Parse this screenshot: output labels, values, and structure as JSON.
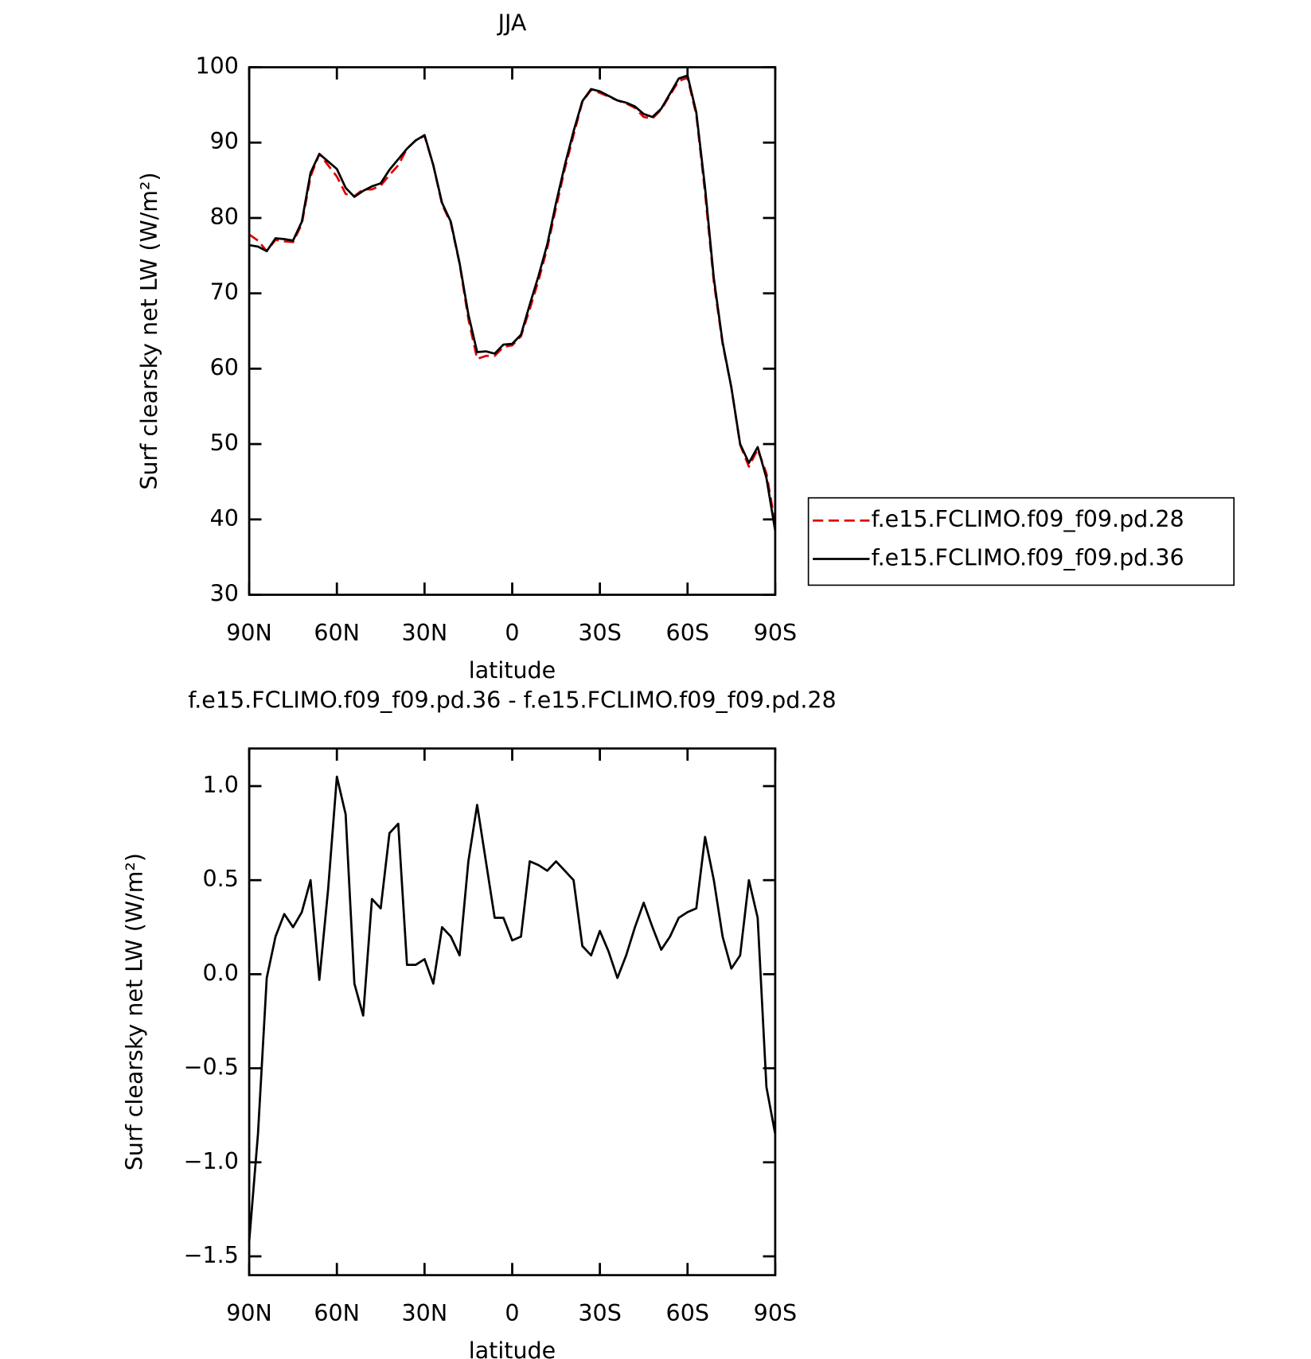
{
  "chart_data": [
    {
      "type": "line",
      "title": "JJA",
      "xlabel": "latitude",
      "ylabel": "Surf clearsky net LW (W/m²)",
      "x": [
        90,
        87,
        84,
        81,
        78,
        75,
        72,
        69,
        66,
        63,
        60,
        57,
        54,
        51,
        48,
        45,
        42,
        39,
        36,
        33,
        30,
        27,
        24,
        21,
        18,
        15,
        12,
        9,
        6,
        3,
        0,
        -3,
        -6,
        -9,
        -12,
        -15,
        -18,
        -21,
        -24,
        -27,
        -30,
        -33,
        -36,
        -39,
        -42,
        -45,
        -48,
        -51,
        -54,
        -57,
        -60,
        -63,
        -66,
        -69,
        -72,
        -75,
        -78,
        -81,
        -84,
        -87,
        -90
      ],
      "series": [
        {
          "name": "f.e15.FCLIMO.f09_f09.pd.28",
          "color": "#e00000",
          "linestyle": "dashed",
          "values": [
            77.8,
            77.0,
            75.6,
            77.1,
            76.9,
            76.8,
            79.2,
            85.5,
            88.5,
            87.0,
            85.5,
            83.2,
            82.9,
            83.8,
            83.8,
            84.3,
            85.7,
            87.0,
            89.2,
            90.3,
            90.9,
            87.0,
            81.8,
            79.3,
            73.9,
            66.6,
            61.3,
            61.7,
            61.7,
            62.9,
            63.1,
            64.3,
            67.9,
            71.7,
            76.0,
            81.4,
            86.5,
            91.0,
            95.4,
            97.0,
            96.6,
            96.1,
            95.6,
            95.2,
            94.6,
            93.4,
            93.2,
            94.4,
            96.3,
            98.2,
            98.6,
            93.7,
            83.3,
            71.5,
            63.3,
            57.5,
            49.9,
            47.0,
            49.3,
            46.1,
            39.4
          ]
        },
        {
          "name": "f.e15.FCLIMO.f09_f09.pd.36",
          "color": "#000000",
          "linestyle": "solid",
          "values": [
            76.4,
            76.2,
            75.6,
            77.3,
            77.2,
            77.0,
            79.5,
            86.0,
            88.5,
            87.5,
            86.5,
            84.0,
            82.8,
            83.6,
            84.2,
            84.6,
            86.4,
            87.8,
            89.2,
            90.3,
            91.0,
            87.0,
            82.0,
            79.5,
            74.0,
            67.2,
            62.2,
            62.3,
            62.0,
            63.2,
            63.3,
            64.5,
            68.5,
            72.3,
            76.5,
            82.0,
            87.0,
            91.5,
            95.5,
            97.1,
            96.8,
            96.2,
            95.6,
            95.3,
            94.8,
            93.8,
            93.4,
            94.5,
            96.5,
            98.5,
            98.9,
            94.0,
            84.0,
            72.0,
            63.5,
            57.5,
            50.0,
            47.5,
            49.6,
            45.5,
            38.5
          ]
        }
      ],
      "xlim": [
        90,
        -90
      ],
      "xticks": [
        {
          "value": 90,
          "label": "90N"
        },
        {
          "value": 60,
          "label": "60N"
        },
        {
          "value": 30,
          "label": "30N"
        },
        0,
        {
          "value": -30,
          "label": "30S"
        },
        {
          "value": -60,
          "label": "60S"
        },
        {
          "value": -90,
          "label": "90S"
        }
      ],
      "ylim": [
        30,
        100
      ],
      "yticks": [
        30,
        40,
        50,
        60,
        70,
        80,
        90,
        100
      ],
      "legend": "outside-right"
    },
    {
      "type": "line",
      "title": "f.e15.FCLIMO.f09_f09.pd.36 - f.e15.FCLIMO.f09_f09.pd.28",
      "xlabel": "latitude",
      "ylabel": "Surf clearsky net LW (W/m²)",
      "x": [
        90,
        87,
        84,
        81,
        78,
        75,
        72,
        69,
        66,
        63,
        60,
        57,
        54,
        51,
        48,
        45,
        42,
        39,
        36,
        33,
        30,
        27,
        24,
        21,
        18,
        15,
        12,
        9,
        6,
        3,
        0,
        -3,
        -6,
        -9,
        -12,
        -15,
        -18,
        -21,
        -24,
        -27,
        -30,
        -33,
        -36,
        -39,
        -42,
        -45,
        -48,
        -51,
        -54,
        -57,
        -60,
        -63,
        -66,
        -69,
        -72,
        -75,
        -78,
        -81,
        -84,
        -87,
        -90
      ],
      "values": [
        -1.42,
        -0.85,
        -0.02,
        0.2,
        0.32,
        0.25,
        0.33,
        0.5,
        -0.03,
        0.45,
        1.05,
        0.85,
        -0.05,
        -0.22,
        0.4,
        0.35,
        0.75,
        0.8,
        0.05,
        0.05,
        0.08,
        -0.05,
        0.25,
        0.2,
        0.1,
        0.6,
        0.9,
        0.6,
        0.3,
        0.3,
        0.18,
        0.2,
        0.6,
        0.58,
        0.55,
        0.6,
        0.55,
        0.5,
        0.15,
        0.1,
        0.23,
        0.12,
        -0.02,
        0.1,
        0.25,
        0.38,
        0.25,
        0.13,
        0.2,
        0.3,
        0.33,
        0.35,
        0.73,
        0.5,
        0.2,
        0.03,
        0.1,
        0.5,
        0.3,
        -0.6,
        -0.85
      ],
      "color": "#000000",
      "xlim": [
        90,
        -90
      ],
      "xticks": [
        {
          "value": 90,
          "label": "90N"
        },
        {
          "value": 60,
          "label": "60N"
        },
        {
          "value": 30,
          "label": "30N"
        },
        0,
        {
          "value": -30,
          "label": "30S"
        },
        {
          "value": -60,
          "label": "60S"
        },
        {
          "value": -90,
          "label": "90S"
        }
      ],
      "ylim": [
        -1.6,
        1.2
      ],
      "yticks": [
        {
          "value": -1.5,
          "label": "−1.5"
        },
        {
          "value": -1,
          "label": "−1.0"
        },
        {
          "value": -0.5,
          "label": "−0.5"
        },
        {
          "value": 0,
          "label": "0.0"
        },
        0.5,
        {
          "value": 1,
          "label": "1.0"
        }
      ]
    }
  ]
}
